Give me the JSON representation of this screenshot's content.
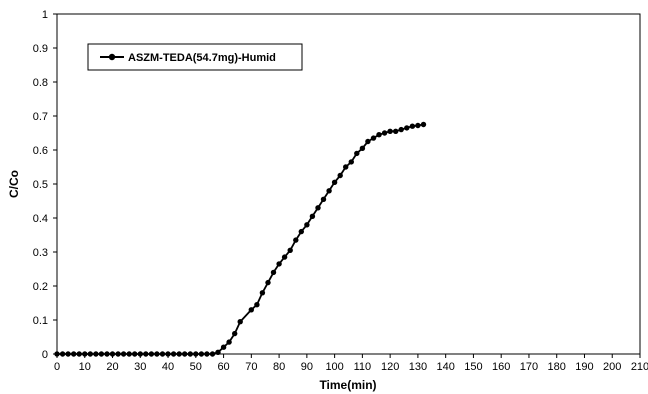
{
  "chart_data": {
    "type": "line",
    "title": "",
    "xlabel": "Time(min)",
    "ylabel": "C/Co",
    "xlim": [
      0,
      210
    ],
    "ylim": [
      0,
      1
    ],
    "x_ticks": [
      "0",
      "10",
      "20",
      "30",
      "40",
      "50",
      "60",
      "70",
      "80",
      "90",
      "100",
      "110",
      "120",
      "130",
      "140",
      "150",
      "160",
      "170",
      "180",
      "190",
      "200",
      "210"
    ],
    "y_ticks": [
      "0",
      "0.1",
      "0.2",
      "0.3",
      "0.4",
      "0.5",
      "0.6",
      "0.7",
      "0.8",
      "0.9",
      "1"
    ],
    "grid": false,
    "legend_position": "top-left",
    "series": [
      {
        "name": "ASZM-TEDA(54.7mg)-Humid",
        "color": "#000000",
        "marker": "circle",
        "points": [
          [
            0,
            0
          ],
          [
            2,
            0
          ],
          [
            4,
            0
          ],
          [
            6,
            0
          ],
          [
            8,
            0
          ],
          [
            10,
            0
          ],
          [
            12,
            0
          ],
          [
            14,
            0
          ],
          [
            16,
            0
          ],
          [
            18,
            0
          ],
          [
            20,
            0
          ],
          [
            22,
            0
          ],
          [
            24,
            0
          ],
          [
            26,
            0
          ],
          [
            28,
            0
          ],
          [
            30,
            0
          ],
          [
            32,
            0
          ],
          [
            34,
            0
          ],
          [
            36,
            0
          ],
          [
            38,
            0
          ],
          [
            40,
            0
          ],
          [
            42,
            0
          ],
          [
            44,
            0
          ],
          [
            46,
            0
          ],
          [
            48,
            0
          ],
          [
            50,
            0
          ],
          [
            52,
            0
          ],
          [
            54,
            0
          ],
          [
            56,
            0
          ],
          [
            58,
            0.005
          ],
          [
            60,
            0.02
          ],
          [
            62,
            0.035
          ],
          [
            64,
            0.06
          ],
          [
            66,
            0.095
          ],
          [
            70,
            0.13
          ],
          [
            72,
            0.145
          ],
          [
            74,
            0.18
          ],
          [
            76,
            0.21
          ],
          [
            78,
            0.24
          ],
          [
            80,
            0.265
          ],
          [
            82,
            0.285
          ],
          [
            84,
            0.305
          ],
          [
            86,
            0.335
          ],
          [
            88,
            0.36
          ],
          [
            90,
            0.38
          ],
          [
            92,
            0.405
          ],
          [
            94,
            0.43
          ],
          [
            96,
            0.455
          ],
          [
            98,
            0.48
          ],
          [
            100,
            0.505
          ],
          [
            102,
            0.525
          ],
          [
            104,
            0.55
          ],
          [
            106,
            0.565
          ],
          [
            108,
            0.59
          ],
          [
            110,
            0.605
          ],
          [
            112,
            0.625
          ],
          [
            114,
            0.635
          ],
          [
            116,
            0.645
          ],
          [
            118,
            0.65
          ],
          [
            120,
            0.655
          ],
          [
            122,
            0.655
          ],
          [
            124,
            0.66
          ],
          [
            126,
            0.665
          ],
          [
            128,
            0.67
          ],
          [
            130,
            0.672
          ],
          [
            132,
            0.675
          ]
        ]
      }
    ]
  }
}
